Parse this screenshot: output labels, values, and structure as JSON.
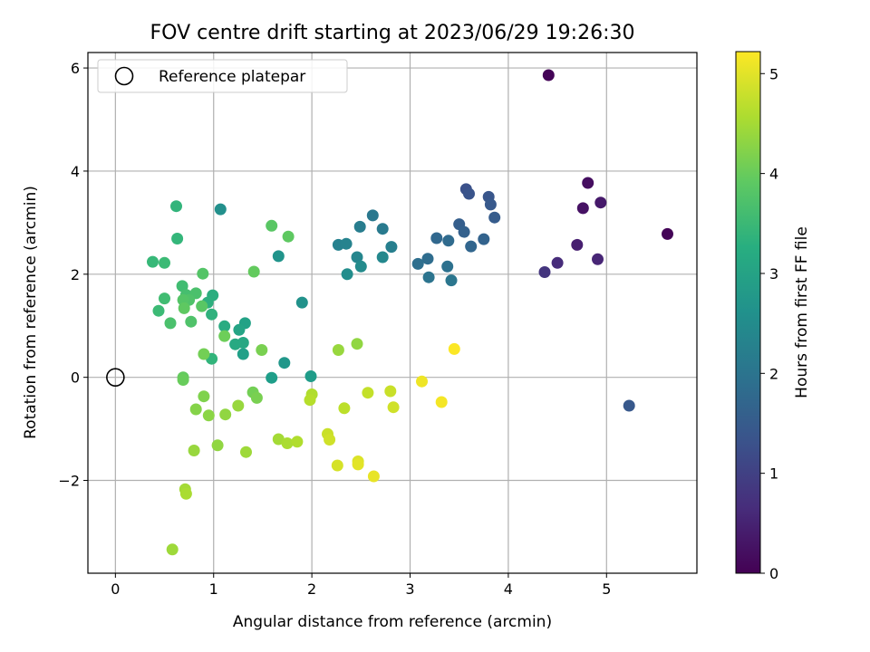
{
  "chart_data": {
    "type": "scatter",
    "title": "FOV centre drift starting at 2023/06/29 19:26:30",
    "xlabel": "Angular distance from reference (arcmin)",
    "ylabel": "Rotation from reference (arcmin)",
    "colorbar_label": "Hours from first FF file",
    "xlim": [
      -0.28,
      5.92
    ],
    "ylim": [
      -3.8,
      6.3
    ],
    "xticks": [
      0,
      1,
      2,
      3,
      4,
      5
    ],
    "yticks": [
      -2,
      0,
      2,
      4,
      6
    ],
    "colorbar_ticks": [
      0,
      1,
      2,
      3,
      4,
      5
    ],
    "colorbar_range": [
      0,
      5.22
    ],
    "grid": true,
    "legend": {
      "position": "top-left",
      "entries": [
        {
          "label": "Reference platepar",
          "marker": "open-circle"
        }
      ]
    },
    "reference": {
      "x": 0,
      "y": 0
    },
    "colormap": "viridis",
    "points": [
      {
        "x": 4.41,
        "y": 5.86,
        "t": 0.05
      },
      {
        "x": 5.62,
        "y": 2.78,
        "t": 0.05
      },
      {
        "x": 4.81,
        "y": 3.77,
        "t": 0.2
      },
      {
        "x": 4.76,
        "y": 3.28,
        "t": 0.25
      },
      {
        "x": 4.94,
        "y": 3.39,
        "t": 0.35
      },
      {
        "x": 4.7,
        "y": 2.57,
        "t": 0.45
      },
      {
        "x": 4.91,
        "y": 2.29,
        "t": 0.55
      },
      {
        "x": 4.5,
        "y": 2.22,
        "t": 0.65
      },
      {
        "x": 4.37,
        "y": 2.04,
        "t": 0.8
      },
      {
        "x": 5.23,
        "y": -0.55,
        "t": 1.45
      },
      {
        "x": 3.57,
        "y": 3.65,
        "t": 1.3
      },
      {
        "x": 3.6,
        "y": 3.56,
        "t": 1.35
      },
      {
        "x": 3.8,
        "y": 3.5,
        "t": 1.4
      },
      {
        "x": 3.82,
        "y": 3.35,
        "t": 1.45
      },
      {
        "x": 3.86,
        "y": 3.1,
        "t": 1.5
      },
      {
        "x": 3.5,
        "y": 2.97,
        "t": 1.55
      },
      {
        "x": 3.55,
        "y": 2.82,
        "t": 1.6
      },
      {
        "x": 3.75,
        "y": 2.68,
        "t": 1.65
      },
      {
        "x": 3.62,
        "y": 2.54,
        "t": 1.7
      },
      {
        "x": 3.27,
        "y": 2.7,
        "t": 1.75
      },
      {
        "x": 3.39,
        "y": 2.65,
        "t": 1.8
      },
      {
        "x": 3.18,
        "y": 2.3,
        "t": 1.85
      },
      {
        "x": 3.08,
        "y": 2.2,
        "t": 1.9
      },
      {
        "x": 3.38,
        "y": 2.15,
        "t": 1.95
      },
      {
        "x": 3.19,
        "y": 1.94,
        "t": 2.0
      },
      {
        "x": 3.42,
        "y": 1.88,
        "t": 2.05
      },
      {
        "x": 2.62,
        "y": 3.14,
        "t": 2.1
      },
      {
        "x": 2.72,
        "y": 2.88,
        "t": 2.15
      },
      {
        "x": 2.49,
        "y": 2.92,
        "t": 2.2
      },
      {
        "x": 2.81,
        "y": 2.53,
        "t": 2.25
      },
      {
        "x": 2.27,
        "y": 2.57,
        "t": 2.3
      },
      {
        "x": 2.35,
        "y": 2.59,
        "t": 2.35
      },
      {
        "x": 2.46,
        "y": 2.33,
        "t": 2.4
      },
      {
        "x": 2.72,
        "y": 2.33,
        "t": 2.45
      },
      {
        "x": 2.5,
        "y": 2.15,
        "t": 2.5
      },
      {
        "x": 2.36,
        "y": 2.0,
        "t": 2.55
      },
      {
        "x": 1.07,
        "y": 3.26,
        "t": 2.6
      },
      {
        "x": 1.9,
        "y": 1.45,
        "t": 2.65
      },
      {
        "x": 1.66,
        "y": 2.35,
        "t": 2.7
      },
      {
        "x": 1.72,
        "y": 0.28,
        "t": 2.75
      },
      {
        "x": 1.99,
        "y": 0.02,
        "t": 2.85
      },
      {
        "x": 1.59,
        "y": -0.01,
        "t": 2.9
      },
      {
        "x": 1.3,
        "y": 0.45,
        "t": 2.95
      },
      {
        "x": 1.32,
        "y": 1.05,
        "t": 3.0
      },
      {
        "x": 1.26,
        "y": 0.92,
        "t": 3.05
      },
      {
        "x": 1.3,
        "y": 0.67,
        "t": 3.1
      },
      {
        "x": 1.22,
        "y": 0.64,
        "t": 3.15
      },
      {
        "x": 1.11,
        "y": 0.99,
        "t": 3.2
      },
      {
        "x": 0.99,
        "y": 1.59,
        "t": 3.25
      },
      {
        "x": 0.94,
        "y": 1.45,
        "t": 3.3
      },
      {
        "x": 0.98,
        "y": 1.22,
        "t": 3.35
      },
      {
        "x": 0.98,
        "y": 0.36,
        "t": 3.4
      },
      {
        "x": 0.62,
        "y": 3.32,
        "t": 3.4
      },
      {
        "x": 0.63,
        "y": 2.69,
        "t": 3.45
      },
      {
        "x": 0.38,
        "y": 2.24,
        "t": 3.5
      },
      {
        "x": 0.5,
        "y": 2.22,
        "t": 3.55
      },
      {
        "x": 0.68,
        "y": 1.77,
        "t": 3.6
      },
      {
        "x": 0.72,
        "y": 1.6,
        "t": 3.65
      },
      {
        "x": 0.82,
        "y": 1.63,
        "t": 3.7
      },
      {
        "x": 0.75,
        "y": 1.5,
        "t": 3.75
      },
      {
        "x": 0.69,
        "y": 1.5,
        "t": 3.8
      },
      {
        "x": 0.88,
        "y": 1.38,
        "t": 3.85
      },
      {
        "x": 0.7,
        "y": 1.34,
        "t": 3.9
      },
      {
        "x": 0.5,
        "y": 1.53,
        "t": 3.6
      },
      {
        "x": 0.44,
        "y": 1.29,
        "t": 3.55
      },
      {
        "x": 0.56,
        "y": 1.05,
        "t": 3.7
      },
      {
        "x": 0.77,
        "y": 1.08,
        "t": 3.75
      },
      {
        "x": 0.89,
        "y": 2.01,
        "t": 3.8
      },
      {
        "x": 1.59,
        "y": 2.94,
        "t": 3.85
      },
      {
        "x": 1.76,
        "y": 2.73,
        "t": 3.9
      },
      {
        "x": 1.41,
        "y": 2.05,
        "t": 3.95
      },
      {
        "x": 0.69,
        "y": 0.0,
        "t": 3.95
      },
      {
        "x": 0.69,
        "y": -0.05,
        "t": 4.0
      },
      {
        "x": 1.11,
        "y": 0.8,
        "t": 4.05
      },
      {
        "x": 0.9,
        "y": 0.45,
        "t": 4.1
      },
      {
        "x": 1.49,
        "y": 0.53,
        "t": 4.15
      },
      {
        "x": 1.4,
        "y": -0.29,
        "t": 4.1
      },
      {
        "x": 1.44,
        "y": -0.4,
        "t": 4.15
      },
      {
        "x": 0.9,
        "y": -0.37,
        "t": 4.2
      },
      {
        "x": 0.82,
        "y": -0.62,
        "t": 4.25
      },
      {
        "x": 0.95,
        "y": -0.74,
        "t": 4.3
      },
      {
        "x": 1.12,
        "y": -0.72,
        "t": 4.35
      },
      {
        "x": 1.25,
        "y": -0.55,
        "t": 4.4
      },
      {
        "x": 1.04,
        "y": -1.32,
        "t": 4.35
      },
      {
        "x": 0.8,
        "y": -1.42,
        "t": 4.4
      },
      {
        "x": 1.33,
        "y": -1.45,
        "t": 4.45
      },
      {
        "x": 0.71,
        "y": -2.17,
        "t": 4.5
      },
      {
        "x": 0.72,
        "y": -2.26,
        "t": 4.55
      },
      {
        "x": 0.58,
        "y": -3.34,
        "t": 4.45
      },
      {
        "x": 1.66,
        "y": -1.2,
        "t": 4.5
      },
      {
        "x": 1.75,
        "y": -1.28,
        "t": 4.55
      },
      {
        "x": 1.85,
        "y": -1.25,
        "t": 4.6
      },
      {
        "x": 2.0,
        "y": -0.33,
        "t": 4.6
      },
      {
        "x": 1.98,
        "y": -0.44,
        "t": 4.65
      },
      {
        "x": 2.27,
        "y": 0.53,
        "t": 4.4
      },
      {
        "x": 2.46,
        "y": 0.65,
        "t": 4.35
      },
      {
        "x": 2.33,
        "y": -0.6,
        "t": 4.7
      },
      {
        "x": 2.57,
        "y": -0.3,
        "t": 4.75
      },
      {
        "x": 2.8,
        "y": -0.27,
        "t": 4.8
      },
      {
        "x": 2.83,
        "y": -0.58,
        "t": 4.85
      },
      {
        "x": 2.16,
        "y": -1.1,
        "t": 4.8
      },
      {
        "x": 2.18,
        "y": -1.21,
        "t": 4.85
      },
      {
        "x": 2.26,
        "y": -1.71,
        "t": 4.9
      },
      {
        "x": 2.47,
        "y": -1.63,
        "t": 4.95
      },
      {
        "x": 2.47,
        "y": -1.69,
        "t": 5.0
      },
      {
        "x": 2.63,
        "y": -1.92,
        "t": 5.05
      },
      {
        "x": 3.12,
        "y": -0.08,
        "t": 5.1
      },
      {
        "x": 3.32,
        "y": -0.48,
        "t": 5.15
      },
      {
        "x": 3.45,
        "y": 0.55,
        "t": 5.2
      }
    ]
  }
}
